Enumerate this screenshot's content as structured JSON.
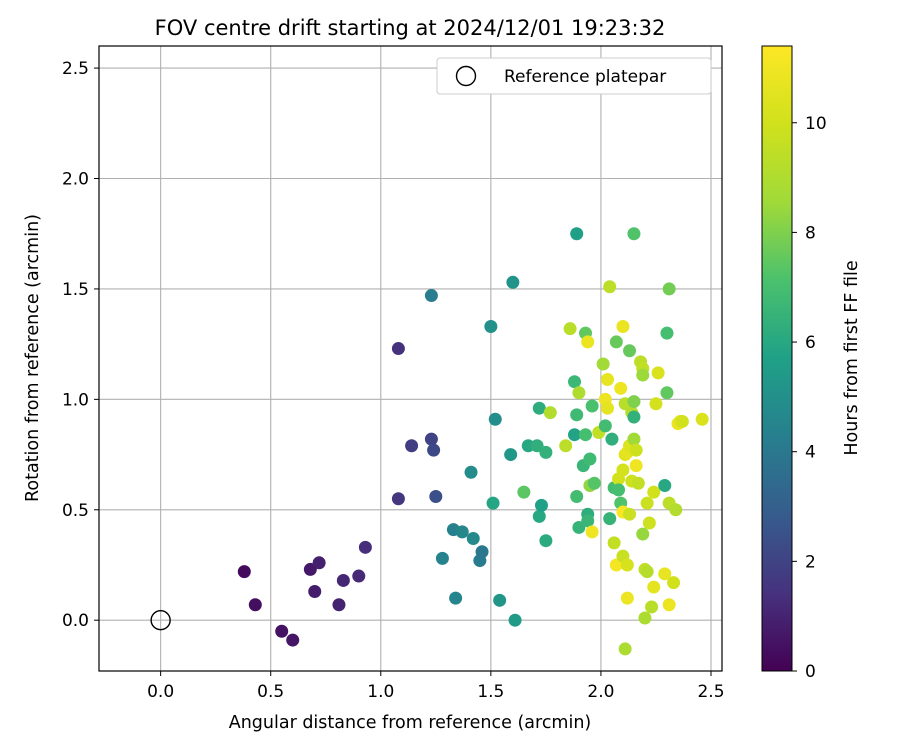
{
  "chart_data": {
    "type": "scatter",
    "title": "FOV centre drift starting at 2024/12/01 19:23:32",
    "xlabel": "Angular distance from reference (arcmin)",
    "ylabel": "Rotation from reference (arcmin)",
    "xlim": [
      -0.28,
      2.55
    ],
    "ylim": [
      -0.23,
      2.6
    ],
    "xticks": [
      "0.0",
      "0.5",
      "1.0",
      "1.5",
      "2.0",
      "2.5"
    ],
    "yticks": [
      "0.0",
      "0.5",
      "1.0",
      "1.5",
      "2.0",
      "2.5"
    ],
    "grid": true,
    "legend": {
      "position": "top-right",
      "entries": [
        "Reference platepar"
      ]
    },
    "reference_point": {
      "x": 0.0,
      "y": 0.0
    },
    "colorbar": {
      "label": "Hours from first FF file",
      "range": [
        0,
        11.4
      ],
      "ticks": [
        "0",
        "2",
        "4",
        "6",
        "8",
        "10"
      ],
      "colormap": "viridis"
    },
    "points": [
      {
        "x": 0.38,
        "y": 0.22,
        "h": 0.3
      },
      {
        "x": 0.43,
        "y": 0.07,
        "h": 0.4
      },
      {
        "x": 0.55,
        "y": -0.05,
        "h": 0.5
      },
      {
        "x": 0.6,
        "y": -0.09,
        "h": 0.6
      },
      {
        "x": 0.68,
        "y": 0.23,
        "h": 0.7
      },
      {
        "x": 0.7,
        "y": 0.13,
        "h": 0.8
      },
      {
        "x": 0.72,
        "y": 0.26,
        "h": 0.9
      },
      {
        "x": 0.81,
        "y": 0.07,
        "h": 1.0
      },
      {
        "x": 0.83,
        "y": 0.18,
        "h": 1.1
      },
      {
        "x": 0.9,
        "y": 0.2,
        "h": 1.2
      },
      {
        "x": 0.93,
        "y": 0.33,
        "h": 1.3
      },
      {
        "x": 1.08,
        "y": 1.23,
        "h": 1.4
      },
      {
        "x": 1.08,
        "y": 0.55,
        "h": 1.6
      },
      {
        "x": 1.14,
        "y": 0.79,
        "h": 1.8
      },
      {
        "x": 1.23,
        "y": 0.82,
        "h": 2.0
      },
      {
        "x": 1.24,
        "y": 0.77,
        "h": 2.2
      },
      {
        "x": 1.25,
        "y": 0.56,
        "h": 2.4
      },
      {
        "x": 1.23,
        "y": 1.47,
        "h": 4.2
      },
      {
        "x": 1.28,
        "y": 0.28,
        "h": 4.4
      },
      {
        "x": 1.33,
        "y": 0.41,
        "h": 4.3
      },
      {
        "x": 1.34,
        "y": 0.1,
        "h": 4.5
      },
      {
        "x": 1.37,
        "y": 0.4,
        "h": 4.6
      },
      {
        "x": 1.41,
        "y": 0.67,
        "h": 4.8
      },
      {
        "x": 1.42,
        "y": 0.37,
        "h": 4.7
      },
      {
        "x": 1.45,
        "y": 0.27,
        "h": 4.1
      },
      {
        "x": 1.46,
        "y": 0.31,
        "h": 4.0
      },
      {
        "x": 1.5,
        "y": 1.33,
        "h": 5.0
      },
      {
        "x": 1.51,
        "y": 0.53,
        "h": 5.9
      },
      {
        "x": 1.52,
        "y": 0.91,
        "h": 4.9
      },
      {
        "x": 1.54,
        "y": 0.09,
        "h": 5.2
      },
      {
        "x": 1.59,
        "y": 0.75,
        "h": 5.3
      },
      {
        "x": 1.6,
        "y": 1.53,
        "h": 5.1
      },
      {
        "x": 1.61,
        "y": 0.0,
        "h": 5.4
      },
      {
        "x": 1.65,
        "y": 0.58,
        "h": 7.4
      },
      {
        "x": 1.67,
        "y": 0.79,
        "h": 6.0
      },
      {
        "x": 1.71,
        "y": 0.79,
        "h": 6.3
      },
      {
        "x": 1.72,
        "y": 0.47,
        "h": 6.0
      },
      {
        "x": 1.72,
        "y": 0.96,
        "h": 6.2
      },
      {
        "x": 1.73,
        "y": 0.52,
        "h": 5.7
      },
      {
        "x": 1.75,
        "y": 0.36,
        "h": 6.1
      },
      {
        "x": 1.75,
        "y": 0.76,
        "h": 6.4
      },
      {
        "x": 1.77,
        "y": 0.94,
        "h": 9.1
      },
      {
        "x": 1.84,
        "y": 0.79,
        "h": 9.4
      },
      {
        "x": 1.86,
        "y": 1.32,
        "h": 9.3
      },
      {
        "x": 1.88,
        "y": 1.08,
        "h": 6.7
      },
      {
        "x": 1.88,
        "y": 0.84,
        "h": 5.8
      },
      {
        "x": 1.89,
        "y": 0.93,
        "h": 6.8
      },
      {
        "x": 1.89,
        "y": 1.75,
        "h": 5.6
      },
      {
        "x": 1.89,
        "y": 0.56,
        "h": 6.9
      },
      {
        "x": 1.9,
        "y": 1.03,
        "h": 9.0
      },
      {
        "x": 1.9,
        "y": 0.42,
        "h": 6.5
      },
      {
        "x": 1.92,
        "y": 0.7,
        "h": 6.6
      },
      {
        "x": 1.93,
        "y": 0.84,
        "h": 7.0
      },
      {
        "x": 1.93,
        "y": 1.3,
        "h": 7.5
      },
      {
        "x": 1.94,
        "y": 0.48,
        "h": 6.2
      },
      {
        "x": 1.94,
        "y": 1.26,
        "h": 10.8
      },
      {
        "x": 1.94,
        "y": 0.45,
        "h": 6.6
      },
      {
        "x": 1.95,
        "y": 0.73,
        "h": 6.8
      },
      {
        "x": 1.95,
        "y": 0.61,
        "h": 8.3
      },
      {
        "x": 1.96,
        "y": 0.97,
        "h": 7.1
      },
      {
        "x": 1.96,
        "y": 0.4,
        "h": 11.0
      },
      {
        "x": 1.97,
        "y": 0.62,
        "h": 7.3
      },
      {
        "x": 1.99,
        "y": 0.85,
        "h": 9.5
      },
      {
        "x": 2.01,
        "y": 1.16,
        "h": 8.6
      },
      {
        "x": 2.02,
        "y": 1.0,
        "h": 10.9
      },
      {
        "x": 2.02,
        "y": 0.88,
        "h": 6.9
      },
      {
        "x": 2.03,
        "y": 1.09,
        "h": 10.7
      },
      {
        "x": 2.03,
        "y": 0.96,
        "h": 10.6
      },
      {
        "x": 2.04,
        "y": 1.51,
        "h": 9.4
      },
      {
        "x": 2.04,
        "y": 0.46,
        "h": 6.5
      },
      {
        "x": 2.05,
        "y": 0.82,
        "h": 6.3
      },
      {
        "x": 2.06,
        "y": 0.6,
        "h": 6.9
      },
      {
        "x": 2.06,
        "y": 0.35,
        "h": 9.6
      },
      {
        "x": 2.07,
        "y": 1.26,
        "h": 7.6
      },
      {
        "x": 2.07,
        "y": 0.25,
        "h": 11.1
      },
      {
        "x": 2.08,
        "y": 0.64,
        "h": 10.1
      },
      {
        "x": 2.08,
        "y": 0.59,
        "h": 7.0
      },
      {
        "x": 2.09,
        "y": 1.05,
        "h": 10.9
      },
      {
        "x": 2.09,
        "y": 0.53,
        "h": 7.2
      },
      {
        "x": 2.1,
        "y": 1.33,
        "h": 10.8
      },
      {
        "x": 2.1,
        "y": 0.68,
        "h": 10.1
      },
      {
        "x": 2.1,
        "y": 0.29,
        "h": 9.7
      },
      {
        "x": 2.1,
        "y": 0.49,
        "h": 11.2
      },
      {
        "x": 2.11,
        "y": 0.75,
        "h": 10.5
      },
      {
        "x": 2.11,
        "y": 0.98,
        "h": 9.3
      },
      {
        "x": 2.11,
        "y": -0.13,
        "h": 8.9
      },
      {
        "x": 2.12,
        "y": 0.1,
        "h": 10.9
      },
      {
        "x": 2.12,
        "y": 0.25,
        "h": 10.2
      },
      {
        "x": 2.12,
        "y": 0.76,
        "h": 10.6
      },
      {
        "x": 2.13,
        "y": 0.79,
        "h": 10.4
      },
      {
        "x": 2.13,
        "y": 1.22,
        "h": 7.6
      },
      {
        "x": 2.13,
        "y": 0.48,
        "h": 9.8
      },
      {
        "x": 2.14,
        "y": 0.94,
        "h": 9.2
      },
      {
        "x": 2.14,
        "y": 0.63,
        "h": 9.9
      },
      {
        "x": 2.15,
        "y": 1.75,
        "h": 7.2
      },
      {
        "x": 2.15,
        "y": 0.99,
        "h": 8.0
      },
      {
        "x": 2.15,
        "y": 0.92,
        "h": 6.4
      },
      {
        "x": 2.15,
        "y": 0.82,
        "h": 8.6
      },
      {
        "x": 2.16,
        "y": 0.7,
        "h": 11.0
      },
      {
        "x": 2.16,
        "y": 0.77,
        "h": 9.9
      },
      {
        "x": 2.17,
        "y": 0.62,
        "h": 9.6
      },
      {
        "x": 2.18,
        "y": 1.17,
        "h": 9.4
      },
      {
        "x": 2.19,
        "y": 0.39,
        "h": 8.4
      },
      {
        "x": 2.19,
        "y": 1.14,
        "h": 9.5
      },
      {
        "x": 2.19,
        "y": 1.11,
        "h": 8.5
      },
      {
        "x": 2.2,
        "y": 0.23,
        "h": 9.5
      },
      {
        "x": 2.2,
        "y": 0.01,
        "h": 8.9
      },
      {
        "x": 2.21,
        "y": 0.53,
        "h": 9.8
      },
      {
        "x": 2.21,
        "y": 0.22,
        "h": 9.2
      },
      {
        "x": 2.22,
        "y": 0.44,
        "h": 9.9
      },
      {
        "x": 2.23,
        "y": 0.06,
        "h": 9.3
      },
      {
        "x": 2.24,
        "y": 0.15,
        "h": 10.6
      },
      {
        "x": 2.24,
        "y": 0.58,
        "h": 10.0
      },
      {
        "x": 2.25,
        "y": 0.98,
        "h": 10.1
      },
      {
        "x": 2.26,
        "y": 1.12,
        "h": 10.3
      },
      {
        "x": 2.29,
        "y": 0.61,
        "h": 6.0
      },
      {
        "x": 2.29,
        "y": 0.21,
        "h": 10.7
      },
      {
        "x": 2.3,
        "y": 1.3,
        "h": 7.0
      },
      {
        "x": 2.3,
        "y": 1.03,
        "h": 7.5
      },
      {
        "x": 2.31,
        "y": 1.5,
        "h": 7.8
      },
      {
        "x": 2.31,
        "y": 0.53,
        "h": 9.4
      },
      {
        "x": 2.31,
        "y": 0.07,
        "h": 10.9
      },
      {
        "x": 2.33,
        "y": 0.17,
        "h": 10.0
      },
      {
        "x": 2.34,
        "y": 0.5,
        "h": 9.1
      },
      {
        "x": 2.35,
        "y": 0.89,
        "h": 10.9
      },
      {
        "x": 2.36,
        "y": 0.9,
        "h": 10.5
      },
      {
        "x": 2.37,
        "y": 0.9,
        "h": 10.0
      },
      {
        "x": 2.46,
        "y": 0.91,
        "h": 10.3
      }
    ]
  }
}
